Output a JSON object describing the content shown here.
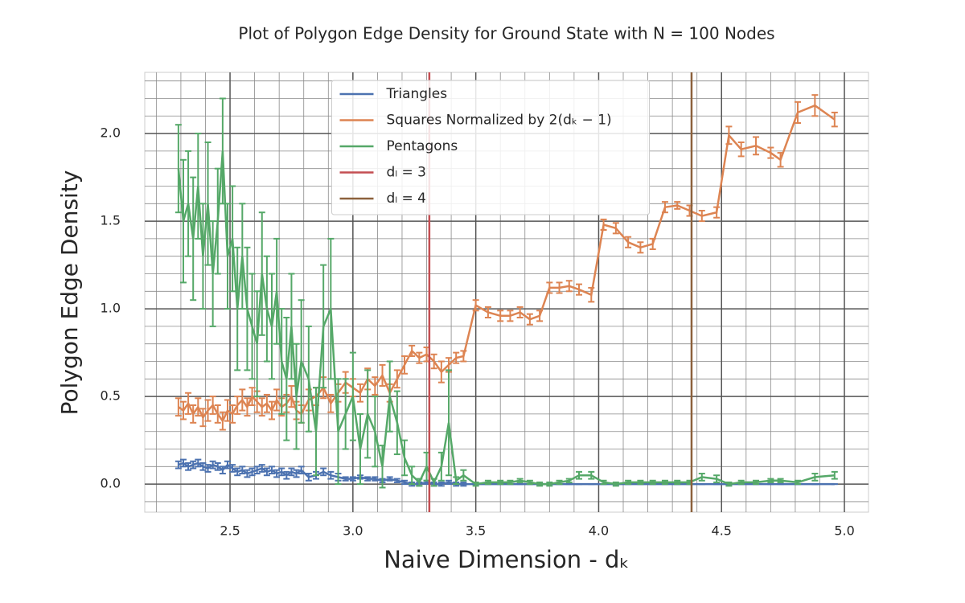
{
  "chart_data": {
    "type": "line",
    "title": "Plot of Polygon Edge Density for Ground State with N = 100 Nodes",
    "xlabel": "Naive Dimension - dₖ",
    "ylabel": "Polygon Edge Density",
    "xlim": [
      2.153,
      5.098
    ],
    "ylim": [
      -0.16,
      2.349
    ],
    "xticks": [
      {
        "value": 2.5,
        "label": "2.5"
      },
      {
        "value": 3.0,
        "label": "3.0"
      },
      {
        "value": 3.5,
        "label": "3.5"
      },
      {
        "value": 4.0,
        "label": "4.0"
      },
      {
        "value": 4.5,
        "label": "4.5"
      },
      {
        "value": 5.0,
        "label": "5.0"
      }
    ],
    "yticks": [
      {
        "value": 0.0,
        "label": "0.0"
      },
      {
        "value": 0.5,
        "label": "0.5"
      },
      {
        "value": 1.0,
        "label": "1.0"
      },
      {
        "value": 1.5,
        "label": "1.5"
      },
      {
        "value": 2.0,
        "label": "2.0"
      }
    ],
    "xminorticks": [
      2.2,
      2.3,
      2.4,
      2.5,
      2.6,
      2.7,
      2.8,
      2.9,
      3.0,
      3.1,
      3.2,
      3.3,
      3.4,
      3.5,
      3.6,
      3.7,
      3.8,
      3.9,
      4.0,
      4.1,
      4.2,
      4.3,
      4.4,
      4.5,
      4.6,
      4.7,
      4.8,
      4.9,
      5.0
    ],
    "yminorticks": [
      -0.1,
      0.0,
      0.1,
      0.2,
      0.3,
      0.4,
      0.5,
      0.6,
      0.7,
      0.8,
      0.9,
      1.0,
      1.1,
      1.2,
      1.3,
      1.4,
      1.5,
      1.6,
      1.7,
      1.8,
      1.9,
      2.0,
      2.1,
      2.2,
      2.3
    ],
    "grid": true,
    "minor_grid": true,
    "legend": "upper center",
    "x": [
      2.29,
      2.31,
      2.33,
      2.35,
      2.37,
      2.39,
      2.41,
      2.43,
      2.45,
      2.47,
      2.49,
      2.51,
      2.53,
      2.55,
      2.57,
      2.59,
      2.61,
      2.63,
      2.65,
      2.67,
      2.69,
      2.71,
      2.73,
      2.75,
      2.77,
      2.79,
      2.82,
      2.85,
      2.88,
      2.91,
      2.94,
      2.97,
      3.0,
      3.03,
      3.06,
      3.09,
      3.12,
      3.15,
      3.18,
      3.21,
      3.24,
      3.27,
      3.3,
      3.33,
      3.36,
      3.39,
      3.42,
      3.45,
      3.5,
      3.55,
      3.6,
      3.64,
      3.68,
      3.72,
      3.76,
      3.8,
      3.84,
      3.88,
      3.92,
      3.97,
      4.02,
      4.07,
      4.12,
      4.17,
      4.22,
      4.27,
      4.32,
      4.37,
      4.42,
      4.48,
      4.53,
      4.58,
      4.64,
      4.7,
      4.74,
      4.81,
      4.88,
      4.96
    ],
    "series": [
      {
        "name": "Triangles",
        "color": "#4c72b0",
        "values": [
          0.11,
          0.12,
          0.1,
          0.11,
          0.12,
          0.1,
          0.09,
          0.11,
          0.1,
          0.08,
          0.11,
          0.09,
          0.07,
          0.08,
          0.06,
          0.07,
          0.08,
          0.09,
          0.07,
          0.08,
          0.06,
          0.07,
          0.05,
          0.07,
          0.06,
          0.08,
          0.04,
          0.05,
          0.07,
          0.05,
          0.04,
          0.03,
          0.03,
          0.04,
          0.03,
          0.03,
          0.02,
          0.03,
          0.02,
          0.01,
          0.0,
          0.0,
          0.01,
          0.0,
          0.0,
          0.01,
          0.0,
          0.0,
          0,
          0,
          0,
          0,
          0,
          0,
          0,
          0,
          0,
          0,
          0,
          0,
          0,
          0,
          0,
          0,
          0,
          0,
          0,
          0,
          0,
          0,
          0,
          0,
          0,
          0,
          0,
          0,
          0,
          0
        ],
        "errors": [
          0.02,
          0.02,
          0.02,
          0.02,
          0.02,
          0.02,
          0.02,
          0.02,
          0.02,
          0.02,
          0.02,
          0.02,
          0.02,
          0.02,
          0.02,
          0.02,
          0.02,
          0.02,
          0.02,
          0.02,
          0.02,
          0.02,
          0.02,
          0.02,
          0.02,
          0.02,
          0.02,
          0.02,
          0.02,
          0.02,
          0.02,
          0.01,
          0.01,
          0.01,
          0.01,
          0.01,
          0.01,
          0.01,
          0.01,
          0.01,
          0.01,
          0.01,
          0.01,
          0.01,
          0.01,
          0.01,
          0.01,
          0.01,
          0,
          0,
          0,
          0,
          0,
          0,
          0,
          0,
          0,
          0,
          0,
          0,
          0,
          0,
          0,
          0,
          0,
          0,
          0,
          0,
          0,
          0,
          0,
          0,
          0,
          0,
          0,
          0,
          0,
          0
        ]
      },
      {
        "name": "Squares Normalized by  2(dₖ − 1)",
        "color": "#dd8452",
        "values": [
          0.44,
          0.42,
          0.46,
          0.4,
          0.44,
          0.38,
          0.42,
          0.45,
          0.4,
          0.36,
          0.42,
          0.4,
          0.45,
          0.48,
          0.44,
          0.5,
          0.47,
          0.44,
          0.46,
          0.42,
          0.48,
          0.44,
          0.46,
          0.5,
          0.42,
          0.4,
          0.48,
          0.5,
          0.55,
          0.46,
          0.52,
          0.58,
          0.55,
          0.52,
          0.6,
          0.56,
          0.62,
          0.52,
          0.6,
          0.68,
          0.76,
          0.72,
          0.74,
          0.7,
          0.64,
          0.68,
          0.72,
          0.73,
          1.02,
          0.98,
          0.96,
          0.96,
          0.98,
          0.94,
          0.96,
          1.12,
          1.12,
          1.13,
          1.11,
          1.08,
          1.48,
          1.46,
          1.38,
          1.35,
          1.37,
          1.58,
          1.59,
          1.56,
          1.53,
          1.55,
          1.99,
          1.91,
          1.93,
          1.89,
          1.85,
          2.12,
          2.16,
          2.08
        ],
        "errors": [
          0.05,
          0.05,
          0.06,
          0.05,
          0.05,
          0.05,
          0.06,
          0.05,
          0.05,
          0.05,
          0.06,
          0.05,
          0.05,
          0.06,
          0.05,
          0.05,
          0.06,
          0.05,
          0.05,
          0.05,
          0.06,
          0.05,
          0.05,
          0.06,
          0.05,
          0.05,
          0.06,
          0.05,
          0.06,
          0.05,
          0.05,
          0.06,
          0.05,
          0.05,
          0.06,
          0.05,
          0.06,
          0.05,
          0.05,
          0.05,
          0.03,
          0.03,
          0.04,
          0.04,
          0.06,
          0.04,
          0.03,
          0.03,
          0.03,
          0.03,
          0.03,
          0.03,
          0.03,
          0.03,
          0.03,
          0.03,
          0.03,
          0.03,
          0.03,
          0.04,
          0.03,
          0.03,
          0.03,
          0.03,
          0.03,
          0.03,
          0.02,
          0.03,
          0.03,
          0.03,
          0.05,
          0.04,
          0.05,
          0.03,
          0.04,
          0.06,
          0.06,
          0.04
        ]
      },
      {
        "name": "Pentagons",
        "color": "#55a868",
        "values": [
          1.8,
          1.5,
          1.6,
          1.4,
          1.7,
          1.3,
          1.6,
          1.2,
          1.5,
          1.9,
          1.3,
          1.4,
          1.0,
          1.3,
          1.0,
          0.9,
          0.8,
          1.2,
          1.0,
          0.9,
          1.1,
          0.7,
          0.6,
          0.9,
          0.5,
          0.7,
          0.6,
          0.3,
          0.9,
          1.0,
          0.3,
          0.4,
          0.5,
          0.2,
          0.4,
          0.3,
          0.1,
          0.5,
          0.35,
          0.15,
          0.05,
          0.01,
          0.1,
          0.01,
          0.1,
          0.35,
          0.02,
          0.05,
          0.0,
          0.01,
          0.01,
          0.01,
          0.02,
          0.01,
          0.0,
          0.0,
          0.01,
          0.02,
          0.05,
          0.05,
          0.01,
          0.0,
          0.01,
          0.01,
          0.01,
          0.01,
          0.01,
          0.01,
          0.04,
          0.03,
          0.0,
          0.01,
          0.01,
          0.02,
          0.02,
          0.01,
          0.04,
          0.05
        ],
        "errors": [
          0.25,
          0.35,
          0.3,
          0.35,
          0.3,
          0.3,
          0.35,
          0.3,
          0.3,
          0.3,
          0.3,
          0.3,
          0.35,
          0.3,
          0.35,
          0.3,
          0.3,
          0.35,
          0.3,
          0.3,
          0.3,
          0.3,
          0.35,
          0.3,
          0.3,
          0.35,
          0.3,
          0.25,
          0.35,
          0.4,
          0.3,
          0.2,
          0.25,
          0.2,
          0.25,
          0.2,
          0.12,
          0.2,
          0.18,
          0.1,
          0.05,
          0.02,
          0.08,
          0.02,
          0.08,
          0.3,
          0.02,
          0.03,
          0.01,
          0.01,
          0.01,
          0.01,
          0.01,
          0.01,
          0.01,
          0.01,
          0.01,
          0.01,
          0.02,
          0.02,
          0.01,
          0.01,
          0.01,
          0.01,
          0.01,
          0.01,
          0.01,
          0.01,
          0.02,
          0.02,
          0.01,
          0.01,
          0.01,
          0.01,
          0.01,
          0.01,
          0.02,
          0.02
        ]
      }
    ],
    "vlines": [
      {
        "name": "dₗ = 3",
        "x": 3.311,
        "color": "#c44e52"
      },
      {
        "name": "dₗ = 4",
        "x": 4.378,
        "color": "#8c613c"
      }
    ]
  }
}
